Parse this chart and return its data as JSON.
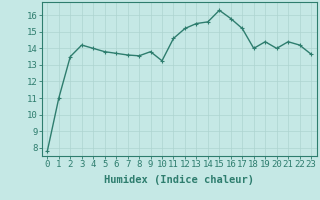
{
  "x": [
    0,
    1,
    2,
    3,
    4,
    5,
    6,
    7,
    8,
    9,
    10,
    11,
    12,
    13,
    14,
    15,
    16,
    17,
    18,
    19,
    20,
    21,
    22,
    23
  ],
  "y": [
    7.8,
    11.0,
    13.5,
    14.2,
    14.0,
    13.8,
    13.7,
    13.6,
    13.55,
    13.8,
    13.25,
    14.6,
    15.2,
    15.5,
    15.6,
    16.3,
    15.8,
    15.2,
    14.0,
    14.4,
    14.0,
    14.4,
    14.2,
    13.65
  ],
  "line_color": "#2e7d6e",
  "marker": "+",
  "marker_size": 3,
  "bg_color": "#c5e8e5",
  "grid_color": "#aed4d0",
  "xlabel": "Humidex (Indice chaleur)",
  "ylim": [
    7.5,
    16.8
  ],
  "xlim": [
    -0.5,
    23.5
  ],
  "yticks": [
    8,
    9,
    10,
    11,
    12,
    13,
    14,
    15,
    16
  ],
  "xticks": [
    0,
    1,
    2,
    3,
    4,
    5,
    6,
    7,
    8,
    9,
    10,
    11,
    12,
    13,
    14,
    15,
    16,
    17,
    18,
    19,
    20,
    21,
    22,
    23
  ],
  "tick_label_fontsize": 6.5,
  "xlabel_fontsize": 7.5,
  "spine_color": "#2e7d6e",
  "line_width": 1.0,
  "marker_edge_width": 0.8
}
